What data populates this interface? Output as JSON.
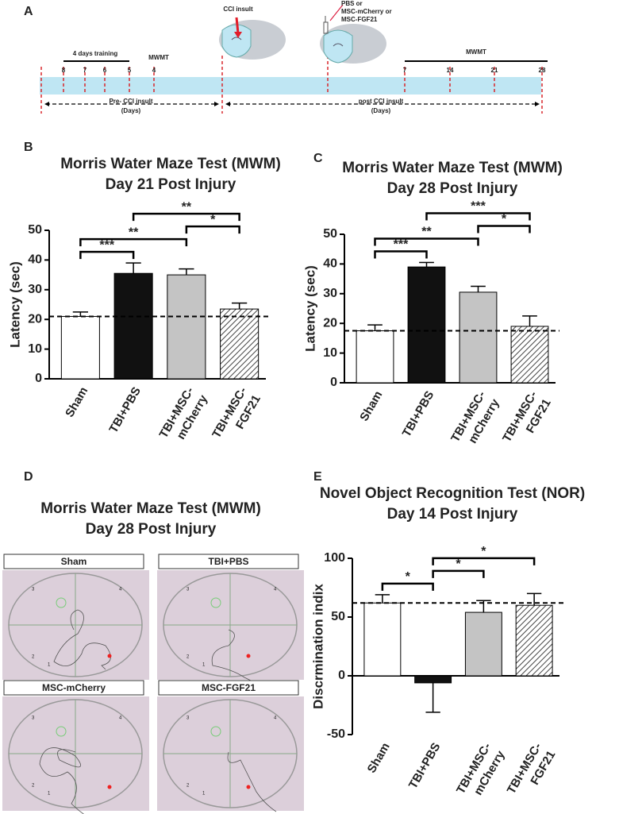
{
  "timeline": {
    "panel": "A",
    "training": "4 days training",
    "mwmt_pre": "MWMT",
    "cci": "CCI insult",
    "treatment": [
      "PBS or",
      "MSC-mCherry or",
      "MSC-FGF21"
    ],
    "mwmt_post": "MWMT",
    "pre_days": [
      "8",
      "7",
      "6",
      "5",
      "4"
    ],
    "post_days": [
      "7",
      "14",
      "21",
      "28"
    ],
    "pre_label": "Pre- CCI insult",
    "pre_unit": "(Days)",
    "post_label": "post CCI insult",
    "post_unit": "(Days)"
  },
  "maze": {
    "panel": "D",
    "title": "Morris Water Maze Test (MWM)",
    "subtitle": "Day 28 Post Injury",
    "panels": [
      "Sham",
      "TBI+PBS",
      "MSC-mCherry",
      "MSC-FGF21"
    ],
    "quadrants": [
      "3",
      "4",
      "2",
      "1"
    ]
  },
  "chart_data": [
    {
      "type": "bar",
      "panel": "B",
      "title": "Morris Water Maze Test (MWM)",
      "subtitle": "Day 21 Post Injury",
      "y_label": "Latency (sec)",
      "categories": [
        "Sham",
        "TBI+PBS",
        "TBI+MSC- mCherry",
        "TBI+MSC- FGF21"
      ],
      "values": [
        21,
        35.5,
        35,
        23.5
      ],
      "errors": [
        1.5,
        3.5,
        2,
        2
      ],
      "colors": [
        "#ffffff",
        "#111111",
        "#c4c4c4",
        "#ffffff"
      ],
      "hatched": [
        false,
        false,
        false,
        true
      ],
      "reference_line": 21,
      "ylim": [
        0,
        50
      ],
      "yticks": [
        0,
        10,
        20,
        30,
        40,
        50
      ],
      "significance": [
        {
          "groups": [
            0,
            1
          ],
          "label": "***"
        },
        {
          "groups": [
            0,
            2
          ],
          "label": "**"
        },
        {
          "groups": [
            2,
            3
          ],
          "label": "*"
        },
        {
          "groups": [
            1,
            3
          ],
          "label": "**"
        }
      ]
    },
    {
      "type": "bar",
      "panel": "C",
      "title": "Morris Water Maze Test (MWM)",
      "subtitle": "Day 28 Post Injury",
      "y_label": "Latency (sec)",
      "categories": [
        "Sham",
        "TBI+PBS",
        "TBI+MSC- mCherry",
        "TBI+MSC- FGF21"
      ],
      "values": [
        17.5,
        39,
        30.5,
        19
      ],
      "errors": [
        2,
        1.5,
        2,
        3.5
      ],
      "colors": [
        "#ffffff",
        "#111111",
        "#c4c4c4",
        "#ffffff"
      ],
      "hatched": [
        false,
        false,
        false,
        true
      ],
      "reference_line": 17.5,
      "ylim": [
        0,
        50
      ],
      "yticks": [
        0,
        10,
        20,
        30,
        40,
        50
      ],
      "significance": [
        {
          "groups": [
            0,
            1
          ],
          "label": "***"
        },
        {
          "groups": [
            0,
            2
          ],
          "label": "**"
        },
        {
          "groups": [
            2,
            3
          ],
          "label": "*"
        },
        {
          "groups": [
            1,
            3
          ],
          "label": "***"
        }
      ]
    },
    {
      "type": "bar",
      "panel": "E",
      "title": "Novel Object Recognition Test (NOR)",
      "subtitle": "Day 14 Post Injury",
      "y_label": "Discrmination indix",
      "categories": [
        "Sham",
        "TBI+PBS",
        "TBI+MSC- mCherry",
        "TBI+MSC- FGF21"
      ],
      "values": [
        62,
        -6,
        54,
        60
      ],
      "errors": [
        7,
        25,
        10,
        10
      ],
      "colors": [
        "#ffffff",
        "#111111",
        "#c4c4c4",
        "#ffffff"
      ],
      "hatched": [
        false,
        false,
        false,
        true
      ],
      "reference_line": 62,
      "ylim": [
        -50,
        100
      ],
      "yticks": [
        -50,
        0,
        50,
        100
      ],
      "significance": [
        {
          "groups": [
            0,
            1
          ],
          "label": "*"
        },
        {
          "groups": [
            1,
            2
          ],
          "label": "*"
        },
        {
          "groups": [
            1,
            3
          ],
          "label": "*"
        }
      ]
    }
  ]
}
